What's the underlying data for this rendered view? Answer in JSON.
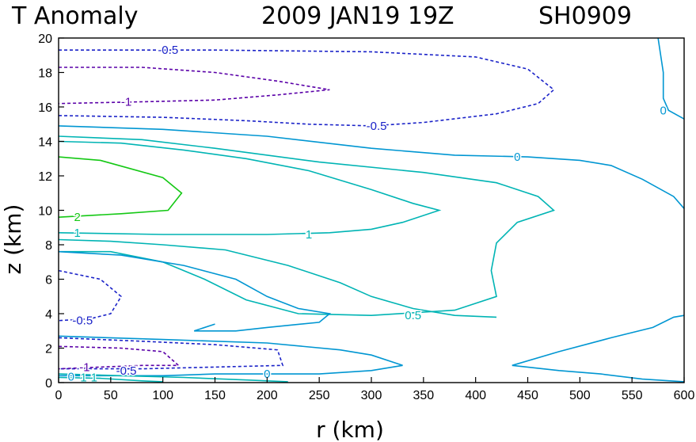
{
  "chart_data": {
    "type": "contour",
    "title": "T Anomaly",
    "datetime": "2009 JAN19 19Z",
    "storm_id": "SH0909",
    "xlabel": "r (km)",
    "ylabel": "z (km)",
    "xlim": [
      0,
      600
    ],
    "ylim": [
      0,
      20
    ],
    "xticks": [
      "0",
      "50",
      "100",
      "150",
      "200",
      "250",
      "300",
      "350",
      "400",
      "450",
      "500",
      "550",
      "600"
    ],
    "yticks": [
      "0",
      "2",
      "4",
      "6",
      "8",
      "10",
      "12",
      "14",
      "16",
      "18",
      "20"
    ],
    "grid": false,
    "contours": [
      {
        "level": -0.5,
        "label": "-0.5",
        "color": "#1a22c8",
        "dashed": true,
        "points": [
          [
            0,
            19.3
          ],
          [
            150,
            19.3
          ],
          [
            300,
            19.2
          ],
          [
            400,
            18.9
          ],
          [
            450,
            18.2
          ],
          [
            475,
            17.0
          ],
          [
            460,
            16.2
          ],
          [
            420,
            15.6
          ],
          [
            350,
            15.1
          ],
          [
            300,
            14.9
          ],
          [
            240,
            15.0
          ],
          [
            180,
            15.2
          ],
          [
            100,
            15.4
          ],
          [
            0,
            15.5
          ]
        ]
      },
      {
        "level": -1,
        "label": "-1",
        "color": "#5a00a8",
        "dashed": true,
        "points": [
          [
            0,
            18.3
          ],
          [
            80,
            18.3
          ],
          [
            150,
            18.0
          ],
          [
            210,
            17.5
          ],
          [
            260,
            17.0
          ],
          [
            210,
            16.7
          ],
          [
            150,
            16.4
          ],
          [
            80,
            16.3
          ],
          [
            0,
            16.2
          ]
        ]
      },
      {
        "level": 0,
        "label": "0",
        "color": "#0096d2",
        "dashed": false,
        "points": [
          [
            0,
            14.9
          ],
          [
            100,
            14.7
          ],
          [
            200,
            14.3
          ],
          [
            300,
            13.6
          ],
          [
            380,
            13.2
          ],
          [
            450,
            13.1
          ],
          [
            500,
            12.9
          ],
          [
            530,
            12.6
          ],
          [
            560,
            11.8
          ],
          [
            590,
            10.8
          ],
          [
            600,
            10.1
          ]
        ]
      },
      {
        "level": 0,
        "label": "0",
        "color": "#0096d2",
        "dashed": false,
        "points": [
          [
            575,
            20.0
          ],
          [
            580,
            18.0
          ],
          [
            580,
            16.5
          ],
          [
            585,
            15.8
          ],
          [
            600,
            15.3
          ]
        ]
      },
      {
        "level": 1,
        "label": "1",
        "color": "#00b4b4",
        "dashed": false,
        "points": [
          [
            0,
            14.3
          ],
          [
            80,
            14.1
          ],
          [
            150,
            13.6
          ],
          [
            250,
            12.8
          ],
          [
            350,
            12.2
          ],
          [
            420,
            11.6
          ],
          [
            460,
            10.8
          ],
          [
            475,
            10.0
          ],
          [
            440,
            9.3
          ],
          [
            420,
            8.1
          ],
          [
            415,
            6.5
          ],
          [
            420,
            5.0
          ],
          [
            380,
            4.2
          ],
          [
            300,
            3.9
          ],
          [
            230,
            4.0
          ],
          [
            180,
            4.8
          ],
          [
            140,
            6.0
          ],
          [
            100,
            7.0
          ],
          [
            50,
            7.6
          ],
          [
            0,
            7.6
          ]
        ]
      },
      {
        "level": 1,
        "label": "1",
        "color": "#00b4b4",
        "dashed": false,
        "points": [
          [
            0,
            14.0
          ],
          [
            60,
            13.9
          ],
          [
            120,
            13.5
          ],
          [
            180,
            13.0
          ],
          [
            240,
            12.3
          ],
          [
            300,
            11.2
          ],
          [
            340,
            10.4
          ],
          [
            365,
            10.0
          ],
          [
            330,
            9.3
          ],
          [
            300,
            8.9
          ],
          [
            260,
            8.7
          ],
          [
            200,
            8.6
          ],
          [
            100,
            8.6
          ],
          [
            0,
            8.7
          ]
        ]
      },
      {
        "level": 0.5,
        "label": "0.5",
        "color": "#00b4b4",
        "dashed": false,
        "points": [
          [
            0,
            8.3
          ],
          [
            50,
            8.2
          ],
          [
            100,
            8.0
          ],
          [
            160,
            7.7
          ],
          [
            220,
            6.8
          ],
          [
            270,
            5.8
          ],
          [
            300,
            5.0
          ],
          [
            340,
            4.3
          ],
          [
            380,
            3.9
          ],
          [
            420,
            3.8
          ]
        ]
      },
      {
        "level": 2,
        "label": "2",
        "color": "#14c814",
        "dashed": false,
        "points": [
          [
            0,
            13.1
          ],
          [
            40,
            12.9
          ],
          [
            100,
            11.9
          ],
          [
            118,
            11.0
          ],
          [
            105,
            10.0
          ],
          [
            60,
            9.8
          ],
          [
            0,
            9.6
          ]
        ]
      },
      {
        "level": 0,
        "label": "0",
        "color": "#0096d2",
        "dashed": false,
        "points": [
          [
            0,
            7.6
          ],
          [
            60,
            7.4
          ],
          [
            120,
            6.8
          ],
          [
            170,
            6.0
          ],
          [
            200,
            5.0
          ],
          [
            230,
            4.3
          ],
          [
            260,
            4.0
          ],
          [
            250,
            3.5
          ],
          [
            200,
            3.2
          ],
          [
            170,
            3.0
          ],
          [
            130,
            3.0
          ],
          [
            150,
            3.4
          ]
        ]
      },
      {
        "level": 0,
        "label": "0",
        "color": "#0096d2",
        "dashed": false,
        "points": [
          [
            0,
            2.7
          ],
          [
            100,
            2.5
          ],
          [
            200,
            2.3
          ],
          [
            270,
            1.9
          ],
          [
            300,
            1.6
          ],
          [
            330,
            1.0
          ],
          [
            300,
            0.7
          ],
          [
            250,
            0.5
          ],
          [
            200,
            0.5
          ],
          [
            150,
            0.5
          ],
          [
            100,
            0.4
          ],
          [
            0,
            0.4
          ]
        ]
      },
      {
        "level": -0.5,
        "label": "-0.5",
        "color": "#1a22c8",
        "dashed": true,
        "points": [
          [
            0,
            6.5
          ],
          [
            40,
            6.0
          ],
          [
            60,
            5.0
          ],
          [
            50,
            4.0
          ],
          [
            30,
            3.7
          ],
          [
            0,
            3.6
          ]
        ]
      },
      {
        "level": -0.5,
        "label": "-0.5",
        "color": "#1a22c8",
        "dashed": true,
        "points": [
          [
            0,
            2.6
          ],
          [
            80,
            2.4
          ],
          [
            150,
            2.2
          ],
          [
            210,
            1.9
          ],
          [
            215,
            1.0
          ],
          [
            150,
            0.9
          ],
          [
            80,
            0.8
          ],
          [
            0,
            0.8
          ]
        ]
      },
      {
        "level": -1,
        "label": "-1",
        "color": "#5a00a8",
        "dashed": true,
        "points": [
          [
            0,
            2.1
          ],
          [
            60,
            2.0
          ],
          [
            100,
            1.8
          ],
          [
            115,
            1.0
          ],
          [
            80,
            1.0
          ],
          [
            40,
            0.9
          ],
          [
            0,
            0.8
          ]
        ]
      },
      {
        "level": 0,
        "label": "0",
        "color": "#0096d2",
        "dashed": false,
        "points": [
          [
            435,
            1.0
          ],
          [
            480,
            1.8
          ],
          [
            530,
            2.6
          ],
          [
            570,
            3.2
          ],
          [
            590,
            3.8
          ],
          [
            600,
            3.9
          ]
        ]
      },
      {
        "level": 0,
        "label": "0",
        "color": "#0096d2",
        "dashed": false,
        "points": [
          [
            435,
            1.0
          ],
          [
            480,
            0.7
          ],
          [
            520,
            0.5
          ],
          [
            560,
            0.2
          ],
          [
            600,
            0.05
          ]
        ]
      },
      {
        "level": 0.5,
        "label": "0.5",
        "color": "#00b4b4",
        "dashed": false,
        "points": [
          [
            0,
            0.5
          ],
          [
            60,
            0.4
          ],
          [
            120,
            0.3
          ],
          [
            180,
            0.15
          ],
          [
            220,
            0.05
          ]
        ]
      },
      {
        "level": 1,
        "label": "1",
        "color": "#00b4b4",
        "dashed": false,
        "points": [
          [
            0,
            0.3
          ],
          [
            40,
            0.25
          ],
          [
            80,
            0.1
          ],
          [
            100,
            0.05
          ]
        ]
      }
    ],
    "labels": [
      {
        "text": "-0.5",
        "x": 105,
        "y": 19.3,
        "color": "#1a22c8"
      },
      {
        "text": "-1",
        "x": 65,
        "y": 16.3,
        "color": "#5a00a8"
      },
      {
        "text": "-0.5",
        "x": 305,
        "y": 14.9,
        "color": "#1a22c8"
      },
      {
        "text": "0",
        "x": 440,
        "y": 13.1,
        "color": "#0096d2"
      },
      {
        "text": "0",
        "x": 580,
        "y": 15.8,
        "color": "#0096d2"
      },
      {
        "text": "2",
        "x": 18,
        "y": 9.6,
        "color": "#14c814"
      },
      {
        "text": "1",
        "x": 18,
        "y": 8.7,
        "color": "#00b4b4"
      },
      {
        "text": "1",
        "x": 240,
        "y": 8.6,
        "color": "#00b4b4"
      },
      {
        "text": "-0.5",
        "x": 23,
        "y": 3.6,
        "color": "#1a22c8"
      },
      {
        "text": "0.5",
        "x": 340,
        "y": 3.9,
        "color": "#00b4b4"
      },
      {
        "text": "-1",
        "x": 25,
        "y": 0.9,
        "color": "#5a00a8"
      },
      {
        "text": "-0.5",
        "x": 65,
        "y": 0.7,
        "color": "#1a22c8"
      },
      {
        "text": "0",
        "x": 200,
        "y": 0.5,
        "color": "#0096d2"
      },
      {
        "text": "0",
        "x": 12,
        "y": 0.35,
        "color": "#0096d2"
      },
      {
        "text": "1",
        "x": 24,
        "y": 0.3,
        "color": "#00b4b4"
      },
      {
        "text": "1",
        "x": 34,
        "y": 0.3,
        "color": "#00b4b4"
      }
    ]
  }
}
